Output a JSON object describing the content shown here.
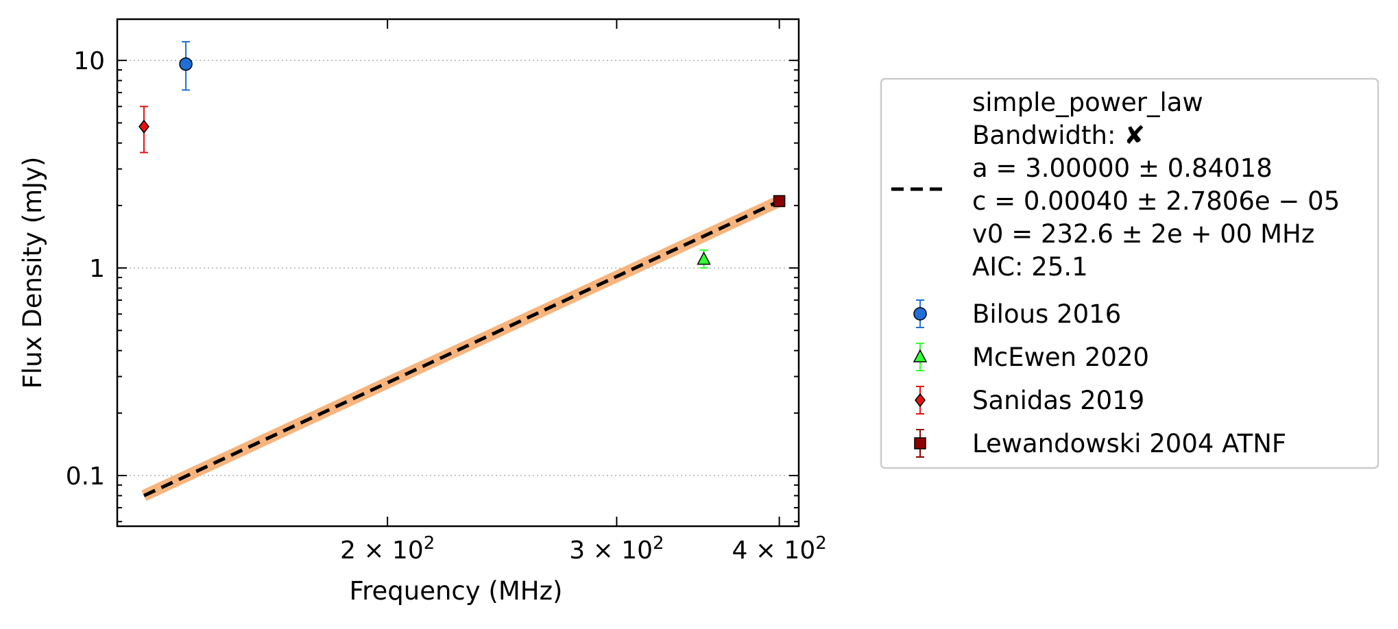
{
  "chart_data": {
    "type": "scatter",
    "title": "",
    "xlabel": "Frequency (MHz)",
    "ylabel": "Flux Density (mJy)",
    "x_scale": "log",
    "y_scale": "log",
    "xlim": [
      124,
      414
    ],
    "ylim": [
      0.057,
      15.8
    ],
    "grid": "horizontal dotted at major y ticks",
    "legend_position": "outside right",
    "x_ticks": [
      {
        "value": 200,
        "base": "2",
        "exp": "2"
      },
      {
        "value": 300,
        "base": "3",
        "exp": "2"
      },
      {
        "value": 400,
        "base": "4",
        "exp": "2"
      }
    ],
    "y_ticks": [
      {
        "value": 0.1,
        "label": "0.1"
      },
      {
        "value": 1,
        "label": "1"
      },
      {
        "value": 10,
        "label": "10"
      }
    ],
    "fit": {
      "model": "simple_power_law",
      "x_range": [
        130,
        400
      ],
      "y_range": [
        0.08,
        2.1
      ],
      "color": "#000000",
      "band_color": "#f7b47d",
      "legend": [
        "simple_power_law",
        "Bandwidth: ✘",
        "a = 3.00000 ± 0.84018",
        "c = 0.00040 ± 2.7806e − 05",
        "v0 = 232.6 ± 2e + 00 MHz",
        "AIC: 25.1"
      ]
    },
    "series": [
      {
        "name": "Bilous 2016",
        "marker": "circle",
        "color": "#1f6fd6",
        "ecolor": "#1f6fd6",
        "points": [
          {
            "x": 140,
            "y": 9.6,
            "ylo": 7.2,
            "yhi": 12.3
          }
        ]
      },
      {
        "name": "McEwen 2020",
        "marker": "triangle",
        "color": "#33ff33",
        "ecolor": "#33ff33",
        "points": [
          {
            "x": 350,
            "y": 1.1,
            "ylo": 1.0,
            "yhi": 1.22
          }
        ]
      },
      {
        "name": "Sanidas 2019",
        "marker": "diamond",
        "color": "#e81010",
        "ecolor": "#e81010",
        "points": [
          {
            "x": 130,
            "y": 4.8,
            "ylo": 3.6,
            "yhi": 6.0
          }
        ]
      },
      {
        "name": "Lewandowski 2004 ATNF",
        "marker": "square",
        "color": "#8b0000",
        "ecolor": "#8b0000",
        "points": [
          {
            "x": 400,
            "y": 2.1,
            "ylo": 2.0,
            "yhi": 2.2
          }
        ]
      }
    ]
  }
}
